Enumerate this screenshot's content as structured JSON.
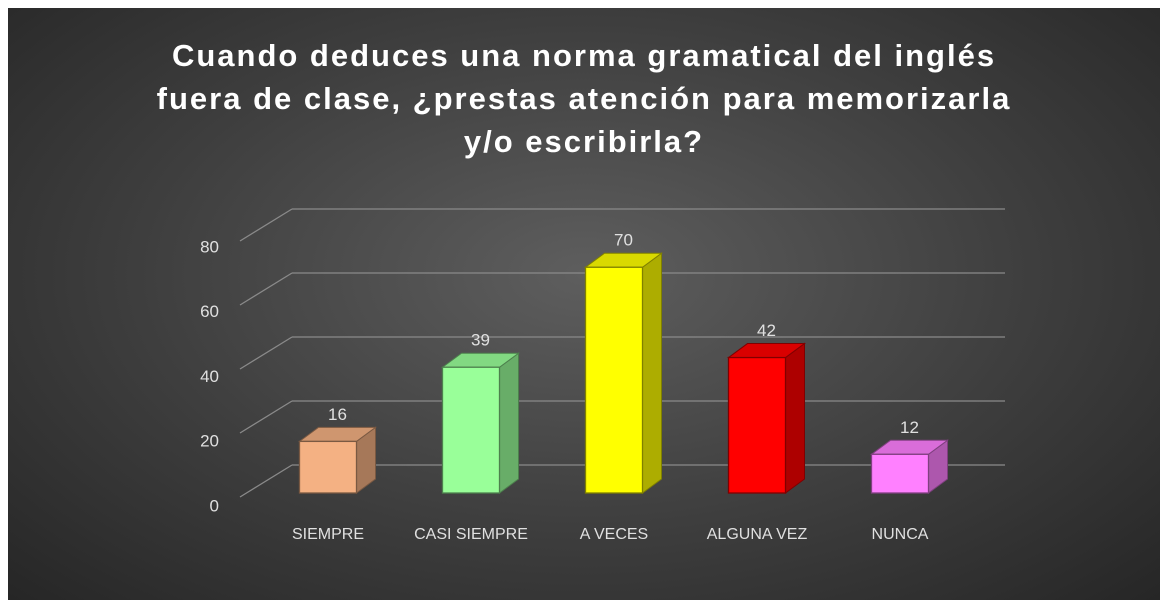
{
  "chart_data": {
    "type": "bar3d",
    "title": "Cuando deduces una norma gramatical del inglés fuera de clase, ¿prestas atención para memorizarla y/o escribirla?",
    "categories": [
      "SIEMPRE",
      "CASI SIEMPRE",
      "A VECES",
      "ALGUNA VEZ",
      "NUNCA"
    ],
    "values": [
      16,
      39,
      70,
      42,
      12
    ],
    "colors": [
      "#f4b183",
      "#99ff99",
      "#ffff00",
      "#ff0000",
      "#ff80ff"
    ],
    "ylim": [
      0,
      80
    ],
    "yticks": [
      0,
      20,
      40,
      60,
      80
    ],
    "grid": true
  }
}
